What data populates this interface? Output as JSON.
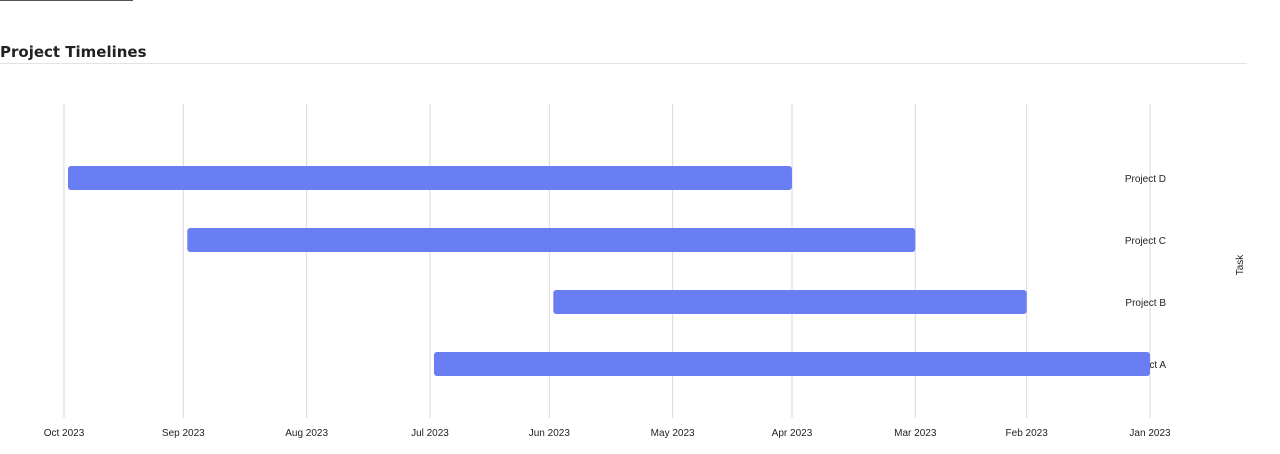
{
  "section": {
    "title": "Project Timelines"
  },
  "chart_data": {
    "type": "bar",
    "orientation": "horizontal-range",
    "title": "",
    "xlabel": "",
    "ylabel": "Task",
    "x_reversed": true,
    "x_ticks": [
      "2023-10-01",
      "2023-09-01",
      "2023-08-01",
      "2023-07-01",
      "2023-06-01",
      "2023-05-01",
      "2023-04-01",
      "2023-03-01",
      "2023-02-01",
      "2023-01-01"
    ],
    "x_tick_labels": [
      "Oct 2023",
      "Sep 2023",
      "Aug 2023",
      "Jul 2023",
      "Jun 2023",
      "May 2023",
      "Apr 2023",
      "Mar 2023",
      "Feb 2023",
      "Jan 2023"
    ],
    "categories": [
      "Project D",
      "Project C",
      "Project B",
      "Project A"
    ],
    "series": [
      {
        "color": "#6a7ef4",
        "ranges": [
          {
            "task": "Project D",
            "start": "2023-04-01",
            "end": "2023-09-30"
          },
          {
            "task": "Project C",
            "start": "2023-03-01",
            "end": "2023-08-31"
          },
          {
            "task": "Project B",
            "start": "2023-02-01",
            "end": "2023-05-31"
          },
          {
            "task": "Project A",
            "start": "2023-01-01",
            "end": "2023-06-30"
          }
        ]
      }
    ],
    "grid": true,
    "legend": "none"
  }
}
